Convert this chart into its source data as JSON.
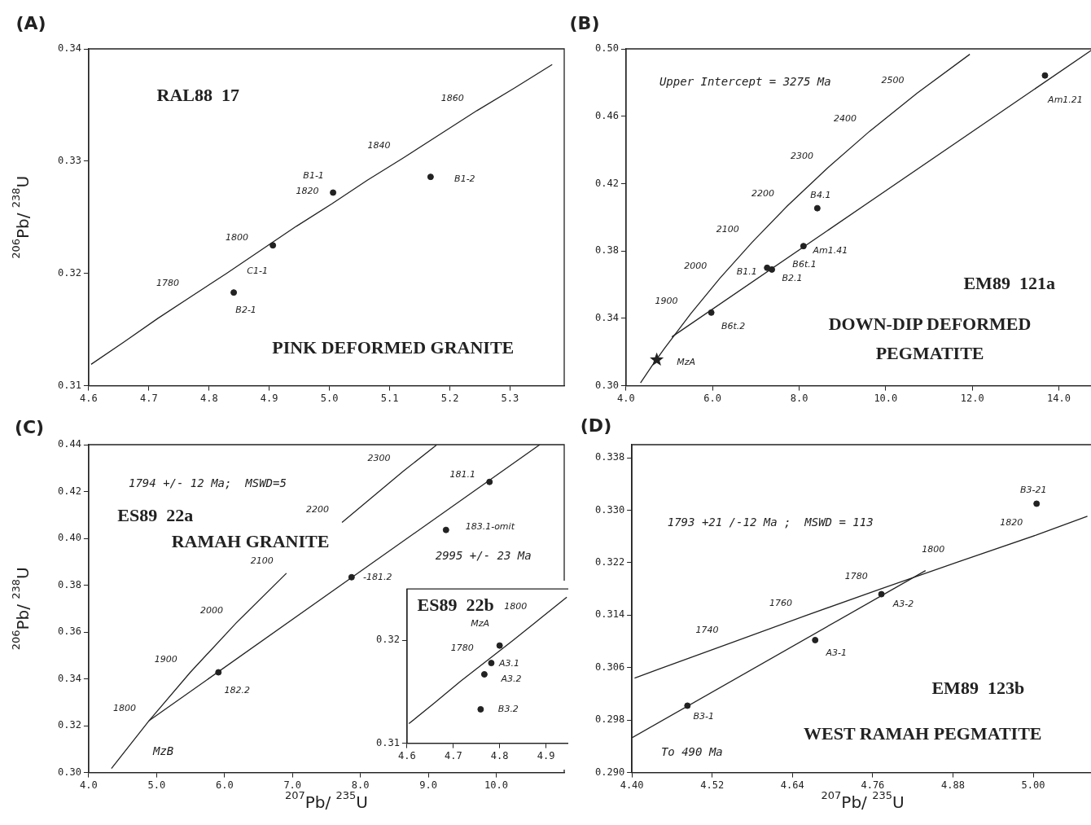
{
  "chart_data": [
    {
      "type": "line",
      "title": "RAL88  17",
      "subtitle": "PINK DEFORMED GRANITE",
      "ylabel": "$^{206}$Pb/ $^{238}$U",
      "xlim": [
        4.6,
        5.39
      ],
      "ylim": [
        0.31,
        0.34
      ],
      "xticks": [
        4.6,
        4.7,
        4.8,
        4.9,
        {
          "value": 5.0,
          "label": "5.0"
        },
        5.1,
        5.2,
        5.3
      ],
      "yticks": [
        0.31,
        0.32,
        0.33,
        0.34
      ],
      "series": [
        {
          "type": "line",
          "color": "#222222",
          "marker": "none",
          "x": [
            4.604,
            4.659,
            4.715,
            4.772,
            4.829,
            4.887,
            4.945,
            5.004,
            5.063,
            5.123,
            5.184,
            5.245,
            5.307,
            5.37
          ],
          "values": [
            0.3119,
            0.3139,
            0.316,
            0.318,
            0.32,
            0.3221,
            0.3242,
            0.3262,
            0.3283,
            0.3303,
            0.3324,
            0.3345,
            0.3365,
            0.3386
          ]
        },
        {
          "type": "scatter",
          "color": "#222222",
          "marker": "circle",
          "x": [
            5.006,
            4.906,
            5.168,
            4.841
          ],
          "values": [
            0.3272,
            0.3225,
            0.3286,
            0.3183
          ]
        }
      ],
      "annotations": [
        "(A)",
        {
          "text": "1860",
          "x": 5.245,
          "y": 0.3345
        },
        {
          "text": "1840",
          "x": 5.123,
          "y": 0.3303
        },
        {
          "text": "1820",
          "x": 5.004,
          "y": 0.3262
        },
        {
          "text": "1800",
          "x": 4.887,
          "y": 0.3221
        },
        {
          "text": "1780",
          "x": 4.772,
          "y": 0.318
        },
        {
          "text": "B1-1",
          "x": 5.006,
          "y": 0.3272
        },
        {
          "text": "C1-1",
          "x": 4.906,
          "y": 0.3225
        },
        {
          "text": "B1-2",
          "x": 5.168,
          "y": 0.3286
        },
        {
          "text": "B2-1",
          "x": 4.841,
          "y": 0.3183
        }
      ]
    },
    {
      "type": "line",
      "title": "EM89  121a",
      "subtitle": "DOWN-DIP DEFORMED PEGMATITE",
      "xlim": [
        4.0,
        14.8
      ],
      "ylim": [
        0.3,
        0.5
      ],
      "xticks": [
        {
          "value": 4,
          "label": "4.0"
        },
        {
          "value": 6,
          "label": "6.0"
        },
        {
          "value": 8,
          "label": "8.0"
        },
        {
          "value": 10,
          "label": "10.0"
        },
        {
          "value": 12,
          "label": "12.0"
        },
        {
          "value": 14,
          "label": "14.0"
        }
      ],
      "yticks": [
        {
          "value": 0.3,
          "label": "0.30"
        },
        0.34,
        0.38,
        0.42,
        0.46,
        {
          "value": 0.5,
          "label": "0.50"
        }
      ],
      "series": [
        {
          "type": "line",
          "color": "#222222",
          "marker": "none",
          "x": [
            4.335,
            4.604,
            4.887,
            5.496,
            6.169,
            6.911,
            7.729,
            8.632,
            9.629,
            10.729,
            11.944
          ],
          "values": [
            0.3017,
            0.3119,
            0.3221,
            0.3428,
            0.3638,
            0.3851,
            0.4068,
            0.4287,
            0.4511,
            0.4738,
            0.4968
          ]
        },
        {
          "type": "line",
          "color": "#222222",
          "marker": "none",
          "x": [
            5.06,
            14.8
          ],
          "values": [
            0.329,
            0.5
          ]
        },
        {
          "type": "scatter",
          "color": "#222222",
          "marker": "circle",
          "x": [
            8.42,
            8.1,
            7.26,
            7.37,
            5.97,
            13.68
          ],
          "values": [
            0.4054,
            0.3829,
            0.37,
            0.369,
            0.3434,
            0.4842
          ]
        },
        {
          "type": "scatter",
          "color": "#222222",
          "marker": "star",
          "x": [
            4.71
          ],
          "values": [
            0.3154
          ]
        }
      ],
      "annotations": [
        "(B)",
        "Upper Intercept = 3275 Ma",
        {
          "text": "2500",
          "x": 10.729,
          "y": 0.4738
        },
        {
          "text": "2400",
          "x": 9.629,
          "y": 0.4511
        },
        {
          "text": "2300",
          "x": 8.632,
          "y": 0.4287
        },
        {
          "text": "2200",
          "x": 7.729,
          "y": 0.4068
        },
        {
          "text": "2100",
          "x": 6.911,
          "y": 0.3851
        },
        {
          "text": "2000",
          "x": 6.169,
          "y": 0.3638
        },
        {
          "text": "1900",
          "x": 5.496,
          "y": 0.3428
        },
        {
          "text": "B4.1",
          "x": 8.42,
          "y": 0.4054
        },
        {
          "text": "Am1.41",
          "x": 8.1,
          "y": 0.3829
        },
        {
          "text": "B6t.1",
          "x": 7.37,
          "y": 0.369
        },
        {
          "text": "B2.1",
          "x": 7.37,
          "y": 0.369
        },
        {
          "text": "B1.1",
          "x": 7.26,
          "y": 0.37
        },
        {
          "text": "B6t.2",
          "x": 5.97,
          "y": 0.3434
        },
        {
          "text": "Am1.21",
          "x": 13.68,
          "y": 0.4842
        },
        {
          "text": "MzA",
          "x": 4.71,
          "y": 0.3154
        }
      ]
    },
    {
      "type": "line",
      "title": "ES89  22a",
      "subtitle": "RAMAH GRANITE",
      "xlabel": "$^{207}$Pb/ $^{235}$U",
      "ylabel": "$^{206}$Pb/ $^{238}$U",
      "xlim": [
        4.0,
        11.0
      ],
      "ylim": [
        0.3,
        0.44
      ],
      "xticks": [
        {
          "value": 4,
          "label": "4.0"
        },
        {
          "value": 5,
          "label": "5.0"
        },
        {
          "value": 6,
          "label": "6.0"
        },
        {
          "value": 7,
          "label": "7.0"
        },
        {
          "value": 8,
          "label": "8.0"
        },
        {
          "value": 9,
          "label": "9.0"
        },
        {
          "value": 10,
          "label": "10.0"
        }
      ],
      "yticks": [
        {
          "value": 0.3,
          "label": "0.30"
        },
        0.32,
        0.34,
        0.36,
        0.38,
        {
          "value": 0.4,
          "label": "0.40"
        },
        0.42,
        0.44
      ],
      "series": [
        {
          "type": "line",
          "color": "#222222",
          "marker": "none",
          "x": [
            4.335,
            4.887,
            5.496,
            6.169,
            6.911,
            7.3,
            7.729,
            8.632,
            9.119
          ],
          "values": [
            0.3017,
            0.3221,
            0.3428,
            0.3638,
            0.3851,
            null,
            0.4068,
            0.4287,
            0.4398
          ]
        },
        {
          "type": "line",
          "color": "#222222",
          "marker": "none",
          "x": [
            4.887,
            10.64
          ],
          "values": [
            0.3221,
            0.44
          ]
        },
        {
          "type": "scatter",
          "color": "#222222",
          "marker": "circle",
          "x": [
            9.9,
            9.26,
            7.87,
            5.91
          ],
          "values": [
            0.4241,
            0.4036,
            0.3834,
            0.3428
          ]
        }
      ],
      "annotations": [
        "(C)",
        "1794 +/- 12 Ma;  MSWD=5",
        "2995 +/- 23 Ma",
        "MzB",
        {
          "text": "2300",
          "x": 8.632,
          "y": 0.4287
        },
        {
          "text": "2200",
          "x": 7.729,
          "y": 0.4068
        },
        {
          "text": "2100",
          "x": 6.911,
          "y": 0.3851
        },
        {
          "text": "2000",
          "x": 6.169,
          "y": 0.3638
        },
        {
          "text": "1900",
          "x": 5.496,
          "y": 0.3428
        },
        {
          "text": "1800",
          "x": 4.887,
          "y": 0.3221
        },
        {
          "text": "181.1",
          "x": 9.9,
          "y": 0.4241
        },
        {
          "text": "183.1-omit",
          "x": 9.26,
          "y": 0.4036
        },
        {
          "text": "-181.2",
          "x": 7.87,
          "y": 0.3834
        },
        {
          "text": "182.2",
          "x": 5.91,
          "y": 0.3428
        }
      ]
    },
    {
      "type": "line",
      "title": "ES89  22b",
      "xlim": [
        4.6,
        4.95
      ],
      "ylim": [
        0.31,
        0.325
      ],
      "xticks": [
        4.6,
        4.7,
        4.8,
        4.9
      ],
      "yticks": [
        0.31,
        0.32
      ],
      "series": [
        {
          "type": "line",
          "color": "#222222",
          "marker": "none",
          "x": [
            4.604,
            4.659,
            4.715,
            4.772,
            4.829,
            4.887,
            4.945
          ],
          "values": [
            0.3119,
            0.3139,
            0.316,
            0.318,
            0.32,
            0.3221,
            0.3242
          ]
        },
        {
          "type": "scatter",
          "color": "#222222",
          "marker": "circle",
          "x": [
            4.8,
            4.782,
            4.767,
            4.759
          ],
          "values": [
            0.3195,
            0.3178,
            0.3167,
            0.3133
          ]
        }
      ],
      "annotations": [
        {
          "text": "1800",
          "x": 4.887,
          "y": 0.3221
        },
        {
          "text": "1780",
          "x": 4.772,
          "y": 0.318
        },
        {
          "text": "A3.1",
          "x": 4.782,
          "y": 0.3178
        },
        {
          "text": "A3.2",
          "x": 4.767,
          "y": 0.3167
        },
        {
          "text": "B3.2",
          "x": 4.759,
          "y": 0.3133
        },
        {
          "text": "MzA",
          "x": 4.8,
          "y": 0.3195
        }
      ]
    },
    {
      "type": "line",
      "title": "EM89  123b",
      "subtitle": "WEST RAMAH PEGMATITE",
      "xlabel": "$^{207}$Pb/ $^{235}$U",
      "xlim": [
        4.4,
        5.09
      ],
      "ylim": [
        0.29,
        0.34
      ],
      "xticks": [
        {
          "value": 4.4,
          "label": "4.40"
        },
        4.52,
        4.64,
        4.76,
        4.88,
        {
          "value": 5,
          "label": "5.00"
        }
      ],
      "yticks": [
        {
          "value": 0.29,
          "label": "0.290"
        },
        0.298,
        0.306,
        0.314,
        0.322,
        {
          "value": 0.33,
          "label": "0.330"
        },
        0.338
      ],
      "series": [
        {
          "type": "line",
          "color": "#222222",
          "marker": "none",
          "x": [
            4.404,
            4.441,
            4.549,
            4.659,
            4.772,
            4.887,
            5.004,
            5.081
          ],
          "values": [
            0.3044,
            0.3058,
            0.3098,
            0.3139,
            0.318,
            0.3221,
            0.3262,
            0.3291
          ]
        },
        {
          "type": "line",
          "color": "#222222",
          "marker": "none",
          "x": [
            4.4,
            4.839
          ],
          "values": [
            0.2953,
            0.3208
          ]
        },
        {
          "type": "scatter",
          "color": "#222222",
          "marker": "circle",
          "x": [
            5.005,
            4.773,
            4.674,
            4.483
          ],
          "values": [
            0.331,
            0.3172,
            0.3102,
            0.3002
          ]
        }
      ],
      "annotations": [
        "(D)",
        "1793 +21 /-12 Ma ;  MSWD = 113",
        "To 490 Ma",
        {
          "text": "1820",
          "x": 5.004,
          "y": 0.3262
        },
        {
          "text": "1800",
          "x": 4.887,
          "y": 0.3221
        },
        {
          "text": "1780",
          "x": 4.772,
          "y": 0.318
        },
        {
          "text": "1760",
          "x": 4.659,
          "y": 0.3139
        },
        {
          "text": "1740",
          "x": 4.549,
          "y": 0.3098
        },
        {
          "text": "B3-21",
          "x": 5.005,
          "y": 0.331
        },
        {
          "text": "A3-2",
          "x": 4.773,
          "y": 0.3172
        },
        {
          "text": "A3-1",
          "x": 4.674,
          "y": 0.3102
        },
        {
          "text": "B3-1",
          "x": 4.483,
          "y": 0.3002
        }
      ]
    }
  ]
}
